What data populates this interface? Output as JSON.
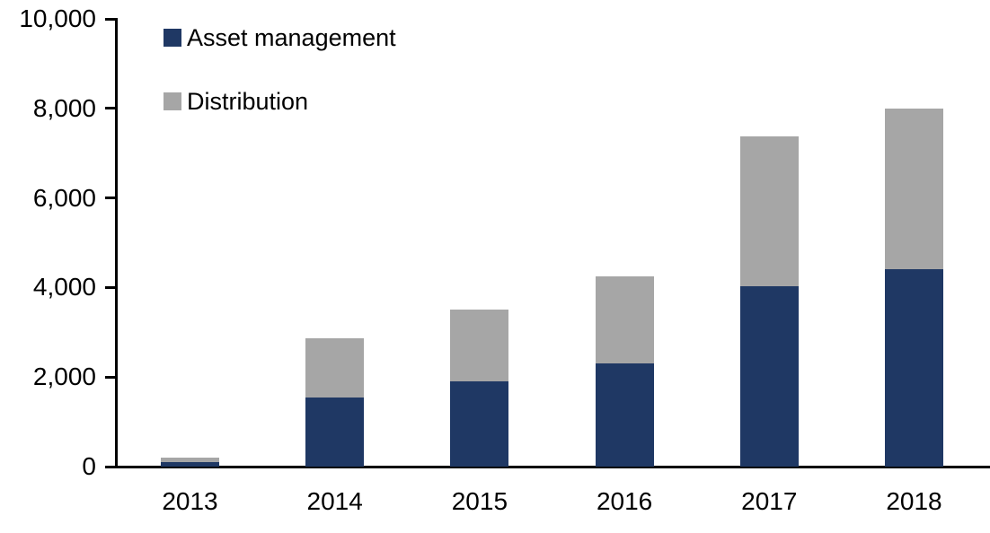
{
  "chart_data": {
    "type": "bar",
    "stacked": true,
    "title": "",
    "xlabel": "",
    "ylabel": "",
    "categories": [
      "2013",
      "2014",
      "2015",
      "2016",
      "2017",
      "2018"
    ],
    "series": [
      {
        "name": "Asset management",
        "color": "#1f3864",
        "values": [
          100,
          1550,
          1900,
          2300,
          4030,
          4400
        ]
      },
      {
        "name": "Distribution",
        "color": "#a6a6a6",
        "values": [
          100,
          1320,
          1600,
          1950,
          3350,
          3600
        ]
      }
    ],
    "totals": [
      200,
      2870,
      3500,
      4250,
      7380,
      8000
    ],
    "ylim": [
      0,
      10000
    ],
    "yticks": [
      0,
      2000,
      4000,
      6000,
      8000,
      10000
    ],
    "ytick_labels": [
      "0",
      "2,000",
      "4,000",
      "6,000",
      "8,000",
      "10,000"
    ],
    "grid": false,
    "legend_position": "top-left",
    "axis_color": "#000000",
    "background_color": "#ffffff"
  }
}
